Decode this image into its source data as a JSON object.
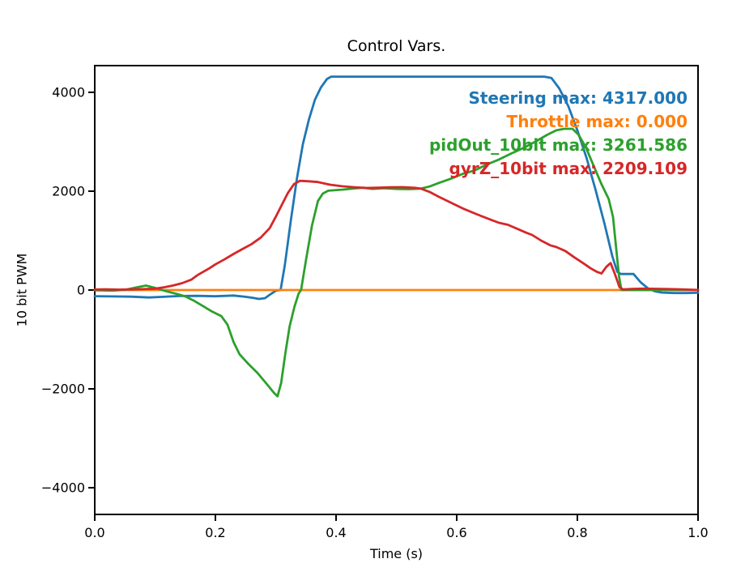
{
  "chart_data": {
    "type": "line",
    "title": "Control Vars.",
    "xlabel": "Time (s)",
    "ylabel": "10 bit PWM",
    "xlim": [
      0.0,
      1.0
    ],
    "ylim": [
      -4540,
      4540
    ],
    "grid": false,
    "xticks": {
      "values": [
        0.0,
        0.2,
        0.4,
        0.6,
        0.8,
        1.0
      ],
      "labels": [
        "0.0",
        "0.2",
        "0.4",
        "0.6",
        "0.8",
        "1.0"
      ]
    },
    "yticks": {
      "values": [
        -4000,
        -2000,
        0,
        2000,
        4000
      ],
      "labels": [
        "−4000",
        "−2000",
        "0",
        "2000",
        "4000"
      ]
    },
    "maxima": {
      "Steering": "4317.000",
      "Throttle": "0.000",
      "pidOut_10bit": "3261.586",
      "gyrZ_10bit": "2209.109"
    },
    "annotations": [
      {
        "text": "Steering max: 4317.000",
        "color": "#1f77b4"
      },
      {
        "text": "Throttle max: 0.000",
        "color": "#ff7f0e"
      },
      {
        "text": "pidOut_10bit max: 3261.586",
        "color": "#2ca02c"
      },
      {
        "text": "gyrZ_10bit max: 2209.109",
        "color": "#d62728"
      }
    ],
    "series": [
      {
        "name": "Steering",
        "color": "#1f77b4",
        "points": [
          [
            0,
            -125
          ],
          [
            0.03,
            -130
          ],
          [
            0.06,
            -135
          ],
          [
            0.09,
            -150
          ],
          [
            0.11,
            -140
          ],
          [
            0.14,
            -122
          ],
          [
            0.17,
            -118
          ],
          [
            0.2,
            -126
          ],
          [
            0.23,
            -112
          ],
          [
            0.25,
            -138
          ],
          [
            0.262,
            -158
          ],
          [
            0.272,
            -180
          ],
          [
            0.282,
            -165
          ],
          [
            0.292,
            -80
          ],
          [
            0.3,
            -15
          ],
          [
            0.308,
            0
          ],
          [
            0.315,
            500
          ],
          [
            0.325,
            1400
          ],
          [
            0.335,
            2250
          ],
          [
            0.345,
            2950
          ],
          [
            0.355,
            3450
          ],
          [
            0.365,
            3850
          ],
          [
            0.375,
            4100
          ],
          [
            0.385,
            4270
          ],
          [
            0.392,
            4317
          ],
          [
            0.45,
            4317
          ],
          [
            0.5,
            4317
          ],
          [
            0.55,
            4317
          ],
          [
            0.6,
            4317
          ],
          [
            0.65,
            4317
          ],
          [
            0.7,
            4317
          ],
          [
            0.745,
            4317
          ],
          [
            0.757,
            4290
          ],
          [
            0.77,
            4080
          ],
          [
            0.785,
            3720
          ],
          [
            0.8,
            3230
          ],
          [
            0.815,
            2680
          ],
          [
            0.83,
            2030
          ],
          [
            0.845,
            1340
          ],
          [
            0.858,
            680
          ],
          [
            0.866,
            370
          ],
          [
            0.872,
            325
          ],
          [
            0.893,
            325
          ],
          [
            0.905,
            155
          ],
          [
            0.917,
            35
          ],
          [
            0.928,
            -25
          ],
          [
            0.94,
            -50
          ],
          [
            0.96,
            -60
          ],
          [
            0.98,
            -60
          ],
          [
            1,
            -55
          ]
        ]
      },
      {
        "name": "Throttle",
        "color": "#ff7f0e",
        "points": [
          [
            0,
            0
          ],
          [
            0.25,
            0
          ],
          [
            0.5,
            0
          ],
          [
            0.75,
            0
          ],
          [
            1,
            0
          ]
        ]
      },
      {
        "name": "pidOut_10bit",
        "color": "#2ca02c",
        "points": [
          [
            0,
            -5
          ],
          [
            0.03,
            -12
          ],
          [
            0.05,
            5
          ],
          [
            0.07,
            55
          ],
          [
            0.085,
            90
          ],
          [
            0.1,
            45
          ],
          [
            0.11,
            5
          ],
          [
            0.12,
            -30
          ],
          [
            0.135,
            -75
          ],
          [
            0.15,
            -130
          ],
          [
            0.165,
            -220
          ],
          [
            0.18,
            -330
          ],
          [
            0.195,
            -440
          ],
          [
            0.21,
            -530
          ],
          [
            0.22,
            -700
          ],
          [
            0.23,
            -1050
          ],
          [
            0.24,
            -1300
          ],
          [
            0.255,
            -1500
          ],
          [
            0.27,
            -1680
          ],
          [
            0.285,
            -1900
          ],
          [
            0.297,
            -2080
          ],
          [
            0.303,
            -2150
          ],
          [
            0.309,
            -1880
          ],
          [
            0.316,
            -1280
          ],
          [
            0.323,
            -740
          ],
          [
            0.331,
            -340
          ],
          [
            0.338,
            -70
          ],
          [
            0.342,
            0
          ],
          [
            0.35,
            600
          ],
          [
            0.36,
            1300
          ],
          [
            0.37,
            1800
          ],
          [
            0.378,
            1950
          ],
          [
            0.387,
            2010
          ],
          [
            0.41,
            2030
          ],
          [
            0.43,
            2055
          ],
          [
            0.445,
            2070
          ],
          [
            0.46,
            2045
          ],
          [
            0.48,
            2060
          ],
          [
            0.5,
            2045
          ],
          [
            0.52,
            2040
          ],
          [
            0.54,
            2050
          ],
          [
            0.555,
            2095
          ],
          [
            0.57,
            2165
          ],
          [
            0.59,
            2250
          ],
          [
            0.61,
            2350
          ],
          [
            0.63,
            2420
          ],
          [
            0.65,
            2540
          ],
          [
            0.67,
            2640
          ],
          [
            0.69,
            2760
          ],
          [
            0.71,
            2870
          ],
          [
            0.73,
            3000
          ],
          [
            0.75,
            3140
          ],
          [
            0.765,
            3230
          ],
          [
            0.778,
            3262
          ],
          [
            0.792,
            3262
          ],
          [
            0.802,
            3140
          ],
          [
            0.814,
            2890
          ],
          [
            0.826,
            2540
          ],
          [
            0.84,
            2140
          ],
          [
            0.852,
            1840
          ],
          [
            0.859,
            1480
          ],
          [
            0.864,
            880
          ],
          [
            0.869,
            280
          ],
          [
            0.873,
            0
          ],
          [
            0.9,
            0
          ],
          [
            0.95,
            0
          ],
          [
            1,
            0
          ]
        ]
      },
      {
        "name": "gyrZ_10bit",
        "color": "#d62728",
        "points": [
          [
            0,
            10
          ],
          [
            0.02,
            15
          ],
          [
            0.04,
            8
          ],
          [
            0.06,
            12
          ],
          [
            0.08,
            18
          ],
          [
            0.1,
            28
          ],
          [
            0.115,
            55
          ],
          [
            0.13,
            92
          ],
          [
            0.145,
            140
          ],
          [
            0.16,
            210
          ],
          [
            0.17,
            300
          ],
          [
            0.18,
            370
          ],
          [
            0.19,
            440
          ],
          [
            0.2,
            520
          ],
          [
            0.215,
            620
          ],
          [
            0.23,
            730
          ],
          [
            0.245,
            830
          ],
          [
            0.26,
            930
          ],
          [
            0.275,
            1060
          ],
          [
            0.29,
            1250
          ],
          [
            0.3,
            1480
          ],
          [
            0.31,
            1720
          ],
          [
            0.32,
            1960
          ],
          [
            0.33,
            2140
          ],
          [
            0.34,
            2209
          ],
          [
            0.355,
            2200
          ],
          [
            0.37,
            2185
          ],
          [
            0.39,
            2130
          ],
          [
            0.41,
            2100
          ],
          [
            0.43,
            2080
          ],
          [
            0.45,
            2065
          ],
          [
            0.47,
            2072
          ],
          [
            0.49,
            2078
          ],
          [
            0.51,
            2082
          ],
          [
            0.53,
            2068
          ],
          [
            0.541,
            2050
          ],
          [
            0.555,
            1985
          ],
          [
            0.57,
            1890
          ],
          [
            0.59,
            1770
          ],
          [
            0.61,
            1650
          ],
          [
            0.635,
            1525
          ],
          [
            0.655,
            1430
          ],
          [
            0.67,
            1360
          ],
          [
            0.685,
            1320
          ],
          [
            0.7,
            1240
          ],
          [
            0.715,
            1160
          ],
          [
            0.725,
            1115
          ],
          [
            0.74,
            1000
          ],
          [
            0.755,
            905
          ],
          [
            0.765,
            870
          ],
          [
            0.78,
            790
          ],
          [
            0.795,
            660
          ],
          [
            0.81,
            540
          ],
          [
            0.822,
            440
          ],
          [
            0.832,
            370
          ],
          [
            0.84,
            335
          ],
          [
            0.848,
            470
          ],
          [
            0.855,
            545
          ],
          [
            0.862,
            330
          ],
          [
            0.87,
            55
          ],
          [
            0.876,
            12
          ],
          [
            0.89,
            22
          ],
          [
            0.91,
            28
          ],
          [
            0.93,
            25
          ],
          [
            0.95,
            20
          ],
          [
            0.97,
            15
          ],
          [
            0.985,
            8
          ],
          [
            1,
            2
          ]
        ]
      }
    ]
  }
}
